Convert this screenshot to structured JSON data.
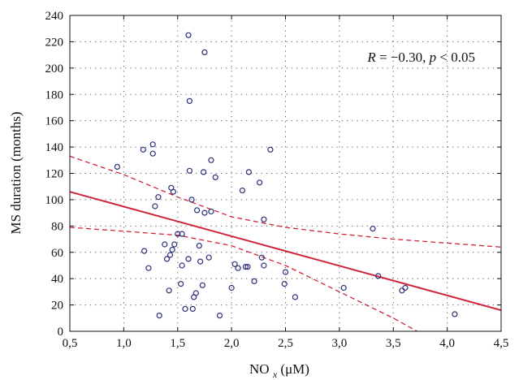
{
  "chart_data": {
    "type": "scatter",
    "title": "",
    "xlabel": "NO",
    "xlabel_sub": "x",
    "xlabel_unit": "(μM)",
    "ylabel": "MS duration (months)",
    "xlim": [
      0.5,
      4.5
    ],
    "ylim": [
      0,
      240
    ],
    "xticks": [
      0.5,
      1.0,
      1.5,
      2.0,
      2.5,
      3.0,
      3.5,
      4.0,
      4.5
    ],
    "xtick_labels": [
      "0,5",
      "1,0",
      "1,5",
      "2,0",
      "2,5",
      "3,0",
      "3,5",
      "4,0",
      "4,5"
    ],
    "yticks": [
      0,
      20,
      40,
      60,
      80,
      100,
      120,
      140,
      160,
      180,
      200,
      220,
      240
    ],
    "ytick_labels": [
      "0",
      "20",
      "40",
      "60",
      "80",
      "100",
      "120",
      "140",
      "160",
      "180",
      "200",
      "220",
      "240"
    ],
    "grid": true,
    "annotation": "R = −0.30, p < 0.05",
    "annotation_r_label": "R",
    "annotation_r_value": "= −0.30,",
    "annotation_p_label": "p",
    "annotation_p_value": "< 0.05",
    "marker_color": "#2b2f7a",
    "fit_color": "#d0243a",
    "regression": {
      "fit": [
        [
          0.5,
          106
        ],
        [
          4.5,
          16
        ]
      ],
      "ci_upper": [
        [
          0.5,
          133
        ],
        [
          1.0,
          119
        ],
        [
          1.5,
          102
        ],
        [
          2.0,
          87
        ],
        [
          2.5,
          79
        ],
        [
          3.0,
          74
        ],
        [
          3.5,
          70
        ],
        [
          4.0,
          67
        ],
        [
          4.5,
          64
        ]
      ],
      "ci_lower": [
        [
          0.5,
          79
        ],
        [
          1.0,
          76
        ],
        [
          1.5,
          73
        ],
        [
          2.0,
          65
        ],
        [
          2.5,
          50
        ],
        [
          3.0,
          30
        ],
        [
          3.5,
          10
        ],
        [
          3.72,
          0
        ]
      ]
    },
    "points": [
      [
        0.94,
        125
      ],
      [
        1.18,
        138
      ],
      [
        1.27,
        142
      ],
      [
        1.27,
        135
      ],
      [
        1.19,
        61
      ],
      [
        1.23,
        48
      ],
      [
        1.29,
        95
      ],
      [
        1.32,
        102
      ],
      [
        1.33,
        12
      ],
      [
        1.38,
        66
      ],
      [
        1.4,
        55
      ],
      [
        1.42,
        31
      ],
      [
        1.43,
        58
      ],
      [
        1.44,
        109
      ],
      [
        1.45,
        62
      ],
      [
        1.46,
        106
      ],
      [
        1.47,
        66
      ],
      [
        1.5,
        74
      ],
      [
        1.53,
        36
      ],
      [
        1.54,
        74
      ],
      [
        1.54,
        50
      ],
      [
        1.57,
        17
      ],
      [
        1.6,
        225
      ],
      [
        1.6,
        55
      ],
      [
        1.61,
        122
      ],
      [
        1.61,
        175
      ],
      [
        1.63,
        100
      ],
      [
        1.64,
        17
      ],
      [
        1.65,
        26
      ],
      [
        1.67,
        29
      ],
      [
        1.68,
        92
      ],
      [
        1.7,
        65
      ],
      [
        1.71,
        53
      ],
      [
        1.73,
        35
      ],
      [
        1.74,
        121
      ],
      [
        1.75,
        90
      ],
      [
        1.75,
        212
      ],
      [
        1.79,
        56
      ],
      [
        1.81,
        91
      ],
      [
        1.81,
        130
      ],
      [
        1.85,
        117
      ],
      [
        1.89,
        12
      ],
      [
        2.0,
        33
      ],
      [
        2.03,
        51
      ],
      [
        2.06,
        48
      ],
      [
        2.1,
        107
      ],
      [
        2.13,
        49
      ],
      [
        2.15,
        49
      ],
      [
        2.16,
        121
      ],
      [
        2.21,
        38
      ],
      [
        2.26,
        113
      ],
      [
        2.28,
        56
      ],
      [
        2.3,
        50
      ],
      [
        2.3,
        85
      ],
      [
        2.36,
        138
      ],
      [
        2.49,
        36
      ],
      [
        2.5,
        45
      ],
      [
        2.59,
        26
      ],
      [
        3.04,
        33
      ],
      [
        3.31,
        78
      ],
      [
        3.36,
        42
      ],
      [
        3.58,
        31
      ],
      [
        3.61,
        33
      ],
      [
        4.07,
        13
      ]
    ]
  }
}
